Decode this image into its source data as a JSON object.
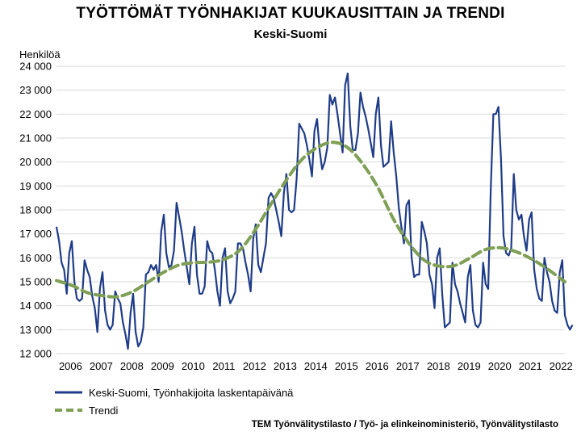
{
  "chart_data": {
    "type": "line",
    "title": "TYÖTTÖMÄT TYÖNHAKIJAT KUUKAUSITTAIN JA TRENDI",
    "subtitle": "Keski-Suomi",
    "ylabel": "Henkilöä",
    "ylim": [
      12000,
      24000
    ],
    "yticks": [
      12000,
      13000,
      14000,
      15000,
      16000,
      17000,
      18000,
      19000,
      20000,
      21000,
      22000,
      23000,
      24000
    ],
    "ytick_labels": [
      "12 000",
      "13 000",
      "14 000",
      "15 000",
      "16 000",
      "17 000",
      "18 000",
      "19 000",
      "20 000",
      "21 000",
      "22 000",
      "23 000",
      "24 000"
    ],
    "x_start": "2006-01",
    "x_end": "2022-08",
    "x_tick_labels": [
      "2006",
      "2007",
      "2008",
      "2009",
      "2010",
      "2011",
      "2012",
      "2013",
      "2014",
      "2015",
      "2016",
      "2017",
      "2018",
      "2019",
      "2020",
      "2021",
      "2022"
    ],
    "grid": true,
    "legend_position": "bottom-left",
    "series": [
      {
        "name": "Keski-Suomi, Työnhakijoita laskentapäivänä",
        "color": "#1f3c88",
        "style": "solid",
        "values": [
          17300,
          16700,
          15800,
          15500,
          14500,
          16200,
          16700,
          15000,
          14300,
          14200,
          14300,
          15900,
          15500,
          15200,
          14400,
          13900,
          12900,
          14700,
          15400,
          13800,
          13200,
          13000,
          13200,
          14600,
          14300,
          14100,
          13300,
          12800,
          12200,
          13700,
          14500,
          12900,
          12300,
          12500,
          13100,
          15300,
          15400,
          15700,
          15500,
          15700,
          15000,
          17100,
          17800,
          16200,
          15600,
          15700,
          16300,
          18300,
          17700,
          17100,
          16300,
          15600,
          14900,
          16600,
          17300,
          15300,
          14500,
          14500,
          14800,
          16700,
          16300,
          16200,
          15500,
          14600,
          14000,
          16000,
          16400,
          14600,
          14100,
          14300,
          14600,
          16600,
          16600,
          16400,
          15800,
          15300,
          14600,
          16800,
          17400,
          15700,
          15400,
          16000,
          16600,
          18500,
          18700,
          18500,
          18000,
          17500,
          16900,
          18700,
          19500,
          18000,
          17900,
          18000,
          19300,
          21600,
          21400,
          21200,
          20700,
          20100,
          19400,
          21300,
          21800,
          20500,
          19700,
          20000,
          20600,
          22800,
          22400,
          22700,
          22000,
          21200,
          20400,
          23200,
          23700,
          21500,
          20500,
          20500,
          21200,
          22900,
          22300,
          21900,
          21400,
          20800,
          20200,
          22000,
          22700,
          20700,
          19800,
          19900,
          20000,
          21700,
          20400,
          19400,
          18100,
          17300,
          16600,
          18200,
          18400,
          16000,
          15200,
          15300,
          15300,
          17500,
          17100,
          16600,
          15300,
          14900,
          13900,
          16000,
          16400,
          14500,
          13100,
          13200,
          13300,
          15800,
          14900,
          14600,
          14100,
          13700,
          13300,
          15200,
          15700,
          13800,
          13200,
          13100,
          13300,
          15800,
          14900,
          14700,
          18900,
          22000,
          22000,
          22300,
          20100,
          16900,
          16200,
          16100,
          16400,
          19500,
          18000,
          17600,
          17800,
          16900,
          16300,
          17600,
          17900,
          15500,
          14700,
          14300,
          14200,
          16000,
          15400,
          15000,
          14200,
          13800,
          13700,
          15400,
          15900,
          13600,
          13200,
          13000,
          13200
        ]
      },
      {
        "name": "Trendi",
        "color": "#7f9f55",
        "style": "dashed",
        "anchors": [
          [
            "2006-01",
            15050
          ],
          [
            "2006-07",
            14850
          ],
          [
            "2007-01",
            14550
          ],
          [
            "2007-07",
            14420
          ],
          [
            "2008-01",
            14380
          ],
          [
            "2008-07",
            14600
          ],
          [
            "2009-01",
            15000
          ],
          [
            "2009-07",
            15400
          ],
          [
            "2010-01",
            15700
          ],
          [
            "2010-07",
            15800
          ],
          [
            "2011-01",
            15820
          ],
          [
            "2011-07",
            15950
          ],
          [
            "2012-01",
            16350
          ],
          [
            "2012-07",
            17200
          ],
          [
            "2013-01",
            18250
          ],
          [
            "2013-07",
            19250
          ],
          [
            "2014-01",
            20100
          ],
          [
            "2014-07",
            20600
          ],
          [
            "2015-01",
            20820
          ],
          [
            "2015-07",
            20600
          ],
          [
            "2016-01",
            19900
          ],
          [
            "2016-07",
            18900
          ],
          [
            "2017-01",
            17600
          ],
          [
            "2017-07",
            16600
          ],
          [
            "2018-01",
            15900
          ],
          [
            "2018-07",
            15650
          ],
          [
            "2019-01",
            15680
          ],
          [
            "2019-07",
            16000
          ],
          [
            "2020-01",
            16350
          ],
          [
            "2020-07",
            16420
          ],
          [
            "2021-01",
            16250
          ],
          [
            "2021-07",
            15950
          ],
          [
            "2022-01",
            15550
          ],
          [
            "2022-08",
            15000
          ]
        ]
      }
    ]
  },
  "source": "TEM Työnvälitystilasto / Työ- ja elinkeinoministeriö, Työnvälitystilasto"
}
